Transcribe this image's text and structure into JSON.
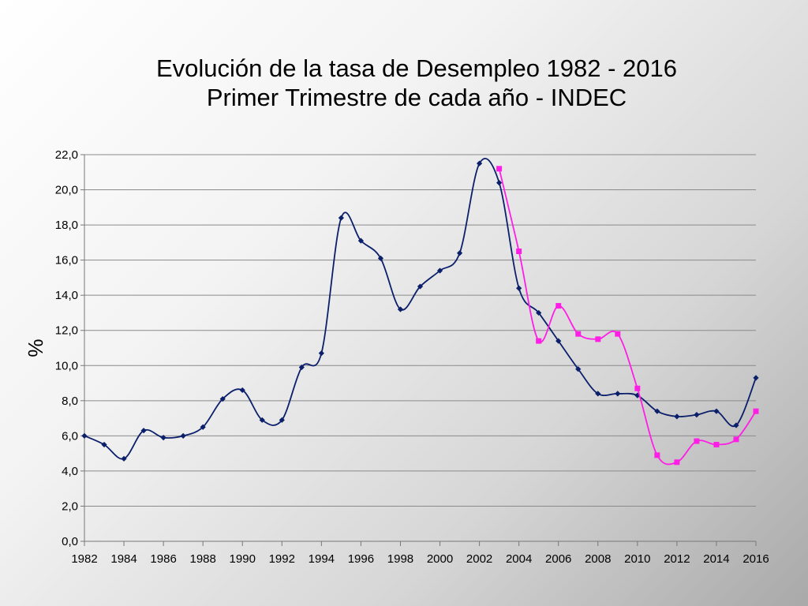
{
  "title": {
    "line1": "Evolución de la tasa de Desempleo 1982 - 2016",
    "line2": "Primer Trimestre de cada año - INDEC"
  },
  "chart_data": {
    "type": "line",
    "title": "Evolución de la tasa de Desempleo 1982 - 2016 / Primer Trimestre de cada año - INDEC",
    "xlabel": "",
    "ylabel": "%",
    "ylim": [
      0,
      22
    ],
    "xlim": [
      1982,
      2016
    ],
    "grid": true,
    "y_ticks": [
      "0,0",
      "2,0",
      "4,0",
      "6,0",
      "8,0",
      "10,0",
      "12,0",
      "14,0",
      "16,0",
      "18,0",
      "20,0",
      "22,0"
    ],
    "y_tick_values": [
      0,
      2,
      4,
      6,
      8,
      10,
      12,
      14,
      16,
      18,
      20,
      22
    ],
    "x_ticks": [
      "1982",
      "1984",
      "1986",
      "1988",
      "1990",
      "1992",
      "1994",
      "1996",
      "1998",
      "2000",
      "2002",
      "2004",
      "2006",
      "2008",
      "2010",
      "2012",
      "2014",
      "2016"
    ],
    "x_tick_values": [
      1982,
      1984,
      1986,
      1988,
      1990,
      1992,
      1994,
      1996,
      1998,
      2000,
      2002,
      2004,
      2006,
      2008,
      2010,
      2012,
      2014,
      2016
    ],
    "series": [
      {
        "color": "#0b1f6b",
        "marker": "diamond",
        "x": [
          1982,
          1983,
          1984,
          1985,
          1986,
          1987,
          1988,
          1989,
          1990,
          1991,
          1992,
          1993,
          1994,
          1995,
          1996,
          1997,
          1998,
          1999,
          2000,
          2001,
          2002,
          2003,
          2004,
          2005,
          2006,
          2007,
          2008,
          2009,
          2010,
          2011,
          2012,
          2013,
          2014,
          2015,
          2016
        ],
        "values": [
          6.0,
          5.5,
          4.7,
          6.3,
          5.9,
          6.0,
          6.5,
          8.1,
          8.6,
          6.9,
          6.9,
          9.9,
          10.7,
          18.4,
          17.1,
          16.1,
          13.2,
          14.5,
          15.4,
          16.4,
          21.5,
          20.4,
          14.4,
          13.0,
          11.4,
          9.8,
          8.4,
          8.4,
          8.3,
          7.4,
          7.1,
          7.2,
          7.4,
          6.6,
          9.3
        ]
      },
      {
        "color": "#ff1ee6",
        "marker": "square",
        "x": [
          2003,
          2004,
          2005,
          2006,
          2007,
          2008,
          2009,
          2010,
          2011,
          2012,
          2013,
          2014,
          2015,
          2016
        ],
        "values": [
          21.2,
          16.5,
          11.4,
          13.4,
          11.8,
          11.5,
          11.8,
          8.7,
          4.9,
          4.5,
          5.7,
          5.5,
          5.8,
          7.4
        ]
      }
    ]
  }
}
